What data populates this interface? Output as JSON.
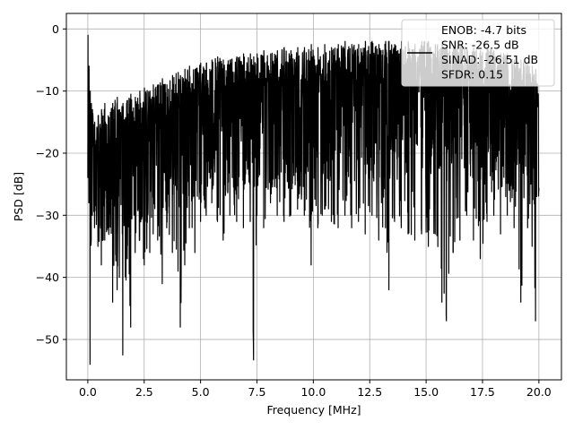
{
  "chart_data": {
    "type": "line",
    "xlabel": "Frequency [MHz]",
    "ylabel": "PSD [dB]",
    "xlim": [
      -0.95,
      21.0
    ],
    "ylim": [
      -56.5,
      2.5
    ],
    "grid": true,
    "legend_position": "upper right",
    "xticks": [
      0.0,
      2.5,
      5.0,
      7.5,
      10.0,
      12.5,
      15.0,
      17.5,
      20.0
    ],
    "xtick_labels": [
      "0.0",
      "2.5",
      "5.0",
      "7.5",
      "10.0",
      "12.5",
      "15.0",
      "17.5",
      "20.0"
    ],
    "yticks": [
      0,
      -10,
      -20,
      -30,
      -40,
      -50
    ],
    "ytick_labels": [
      "0",
      "−10",
      "−20",
      "−30",
      "−40",
      "−50"
    ],
    "legend": [
      "ENOB: -4.7 bits",
      "SNR: -26.5 dB",
      "SINAD: -26.51 dB",
      "SFDR: 0.15"
    ],
    "series": [
      {
        "color": "#000000",
        "x": [
          0.0,
          0.05,
          0.1,
          0.15,
          0.2,
          0.3,
          0.45,
          0.6,
          0.75,
          0.9,
          1.1,
          1.3,
          1.4,
          1.55,
          1.75,
          1.9,
          2.1,
          2.3,
          2.5,
          2.75,
          2.9,
          3.1,
          3.3,
          3.5,
          3.75,
          4.0,
          4.1,
          4.3,
          4.5,
          4.75,
          5.0,
          5.25,
          5.5,
          5.75,
          6.0,
          6.3,
          6.6,
          6.9,
          7.2,
          7.35,
          7.5,
          7.8,
          8.1,
          8.4,
          8.7,
          9.0,
          9.3,
          9.6,
          9.9,
          10.2,
          10.5,
          10.8,
          11.1,
          11.4,
          11.7,
          12.0,
          12.3,
          12.6,
          12.9,
          13.2,
          13.35,
          13.6,
          13.9,
          14.2,
          14.5,
          14.8,
          15.1,
          15.4,
          15.7,
          15.9,
          16.2,
          16.5,
          16.8,
          17.1,
          17.4,
          17.7,
          18.0,
          18.3,
          18.6,
          18.9,
          19.2,
          19.5,
          19.7,
          19.85,
          20.0
        ],
        "y_upper": [
          -1.0,
          -6.0,
          -10.0,
          -12.0,
          -13.0,
          -15.0,
          -14.0,
          -13.0,
          -12.0,
          -14.0,
          -12.0,
          -11.0,
          -13.0,
          -12.0,
          -11.5,
          -10.5,
          -11.0,
          -10.0,
          -9.5,
          -10.0,
          -9.0,
          -9.0,
          -8.0,
          -9.0,
          -7.5,
          -7.0,
          -7.5,
          -6.5,
          -6.0,
          -6.5,
          -5.5,
          -5.5,
          -5.0,
          -4.5,
          -5.0,
          -5.0,
          -4.5,
          -4.0,
          -4.0,
          -4.5,
          -4.0,
          -3.5,
          -4.0,
          -3.5,
          -3.0,
          -3.5,
          -3.0,
          -3.0,
          -2.5,
          -3.0,
          -2.5,
          -3.0,
          -2.5,
          -2.0,
          -2.5,
          -2.5,
          -2.0,
          -2.0,
          -2.5,
          -2.0,
          -2.0,
          -2.5,
          -2.0,
          -2.0,
          -2.5,
          -2.0,
          -2.0,
          -2.5,
          -2.0,
          -2.5,
          -3.0,
          -2.5,
          -3.0,
          -3.0,
          -3.5,
          -3.0,
          -3.5,
          -4.0,
          -4.0,
          -5.0,
          -5.0,
          -5.5,
          -6.0,
          -6.5,
          -8.0
        ],
        "y_lower": [
          -24.0,
          -28.0,
          -54.0,
          -34.0,
          -30.0,
          -32.0,
          -35.0,
          -38.0,
          -34.0,
          -32.0,
          -44.0,
          -42.0,
          -40.0,
          -52.5,
          -37.0,
          -48.0,
          -36.0,
          -34.0,
          -38.0,
          -36.0,
          -33.0,
          -34.0,
          -41.0,
          -32.0,
          -36.0,
          -39.0,
          -48.0,
          -38.0,
          -32.0,
          -36.0,
          -31.0,
          -30.0,
          -28.0,
          -31.0,
          -34.0,
          -30.0,
          -31.0,
          -32.0,
          -31.0,
          -53.3,
          -30.0,
          -32.0,
          -28.0,
          -30.0,
          -31.0,
          -30.0,
          -29.0,
          -30.0,
          -38.0,
          -32.0,
          -29.0,
          -31.0,
          -32.0,
          -30.0,
          -32.0,
          -31.0,
          -33.0,
          -30.0,
          -34.0,
          -32.0,
          -42.0,
          -31.0,
          -32.0,
          -33.0,
          -34.0,
          -33.0,
          -35.0,
          -33.0,
          -44.0,
          -47.0,
          -36.0,
          -34.0,
          -30.0,
          -34.0,
          -37.0,
          -31.0,
          -30.0,
          -33.0,
          -30.0,
          -32.0,
          -44.0,
          -32.0,
          -35.0,
          -47.0,
          -26.0
        ]
      }
    ]
  }
}
